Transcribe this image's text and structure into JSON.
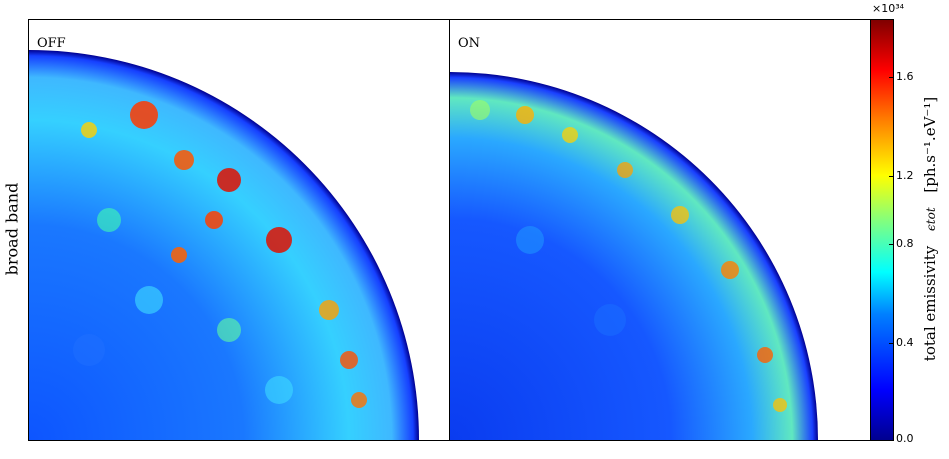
{
  "panels": [
    {
      "label": "OFF"
    },
    {
      "label": "ON"
    }
  ],
  "row_label": "broad band",
  "colorbar": {
    "exponent": "×10³⁴",
    "ticks": [
      "1.6",
      "1.2",
      "0.8",
      "0.4",
      "0.0"
    ],
    "label_name": "total emissivity",
    "label_symbol": "ϵtot",
    "label_unit": "[ph.s⁻¹.eV⁻¹]",
    "range": [
      0.0,
      1.7
    ]
  }
}
